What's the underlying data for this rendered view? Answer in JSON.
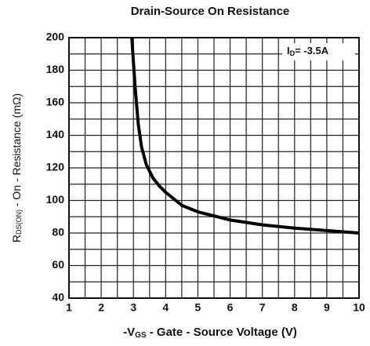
{
  "chart_data": {
    "type": "line",
    "title": "Drain-Source On Resistance",
    "x_label": [
      "-V",
      "GS",
      " - Gate - Source Voltage (V)"
    ],
    "y_label": [
      "R",
      "DS(ON)",
      " - On - Resistance (mΩ)"
    ],
    "annotation": [
      "I",
      "D",
      "= -3.5A"
    ],
    "x": [
      2.95,
      3.05,
      3.15,
      3.25,
      3.4,
      3.6,
      3.8,
      4.0,
      4.5,
      5.0,
      5.5,
      6.0,
      7.0,
      8.0,
      9.0,
      10.0
    ],
    "series": [
      {
        "name": null,
        "color": "#000000",
        "values": [
          200,
          170,
          147,
          133,
          122,
          114,
          109,
          105,
          97,
          93,
          90.5,
          88,
          85,
          83,
          81.5,
          80
        ]
      }
    ],
    "xlim": [
      1,
      10
    ],
    "xticks": [
      1,
      2,
      3,
      4,
      5,
      6,
      7,
      8,
      9,
      10
    ],
    "ylim": [
      40,
      200
    ],
    "yticks": [
      40,
      60,
      80,
      100,
      120,
      140,
      160,
      180,
      200
    ],
    "grid": true,
    "minor_grid": true
  }
}
